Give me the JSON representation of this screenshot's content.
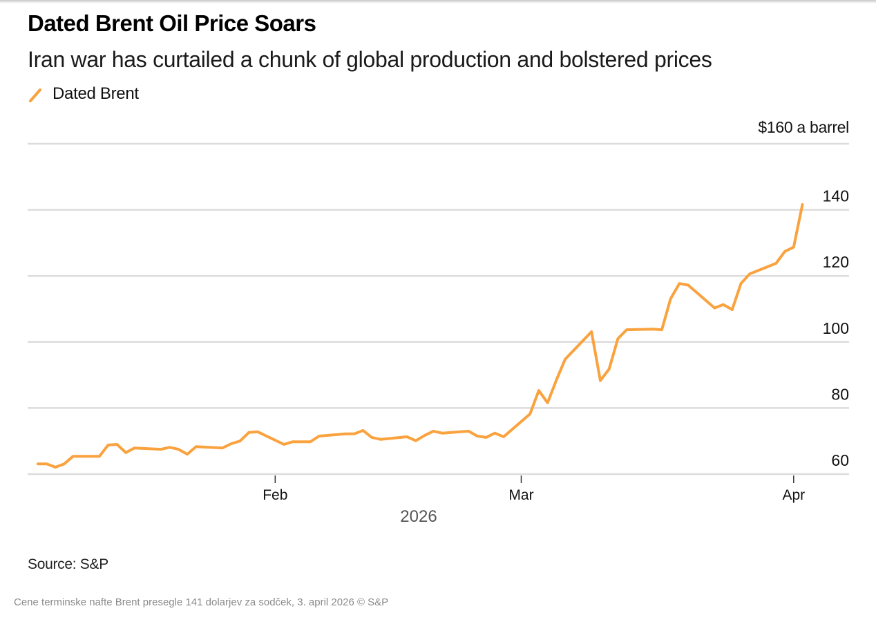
{
  "header": {
    "title": "Dated Brent Oil Price Soars",
    "subtitle": "Iran war has curtailed a chunk of global production and bolstered prices"
  },
  "legend": {
    "label": "Dated Brent",
    "color": "#F9A23E"
  },
  "footer": {
    "source": "Source: S&P",
    "caption": "Cene terminske nafte Brent presegle 141 dolarjev za sodček, 3. april 2026 © S&P"
  },
  "chart_data": {
    "type": "line",
    "title": "Dated Brent Oil Price Soars",
    "subtitle": "Iran war has curtailed a chunk of global production and bolstered prices",
    "unit_label": "$160 a barrel",
    "xlabel": "2026",
    "ylabel": "",
    "ylim": [
      60,
      160
    ],
    "yticks": [
      {
        "value": 160,
        "label": ""
      },
      {
        "value": 140,
        "label": "140"
      },
      {
        "value": 120,
        "label": "120"
      },
      {
        "value": 100,
        "label": "100"
      },
      {
        "value": 80,
        "label": "80"
      },
      {
        "value": 60,
        "label": "60"
      }
    ],
    "xlim": [
      "2026-01-01",
      "2026-04-07"
    ],
    "xticks": [
      {
        "date": "2026-02-01",
        "label": "Feb"
      },
      {
        "date": "2026-03-01",
        "label": "Mar"
      },
      {
        "date": "2026-04-01",
        "label": "Apr"
      }
    ],
    "grid": true,
    "legend_position": "top-left",
    "series": [
      {
        "name": "Dated Brent",
        "color": "#F9A23E",
        "points": [
          [
            "2026-01-05",
            63.1
          ],
          [
            "2026-01-06",
            63.1
          ],
          [
            "2026-01-07",
            62.1
          ],
          [
            "2026-01-08",
            63.1
          ],
          [
            "2026-01-09",
            65.4
          ],
          [
            "2026-01-12",
            65.4
          ],
          [
            "2026-01-13",
            68.8
          ],
          [
            "2026-01-14",
            69.0
          ],
          [
            "2026-01-15",
            66.5
          ],
          [
            "2026-01-16",
            67.9
          ],
          [
            "2026-01-19",
            67.5
          ],
          [
            "2026-01-20",
            68.1
          ],
          [
            "2026-01-21",
            67.5
          ],
          [
            "2026-01-22",
            66.0
          ],
          [
            "2026-01-23",
            68.3
          ],
          [
            "2026-01-26",
            67.9
          ],
          [
            "2026-01-27",
            69.2
          ],
          [
            "2026-01-28",
            70.0
          ],
          [
            "2026-01-29",
            72.6
          ],
          [
            "2026-01-30",
            72.8
          ],
          [
            "2026-02-02",
            69.0
          ],
          [
            "2026-02-03",
            69.8
          ],
          [
            "2026-02-04",
            69.8
          ],
          [
            "2026-02-05",
            69.8
          ],
          [
            "2026-02-06",
            71.5
          ],
          [
            "2026-02-09",
            72.2
          ],
          [
            "2026-02-10",
            72.2
          ],
          [
            "2026-02-11",
            73.2
          ],
          [
            "2026-02-12",
            71.1
          ],
          [
            "2026-02-13",
            70.5
          ],
          [
            "2026-02-16",
            71.3
          ],
          [
            "2026-02-17",
            70.1
          ],
          [
            "2026-02-18",
            71.7
          ],
          [
            "2026-02-19",
            73.0
          ],
          [
            "2026-02-20",
            72.4
          ],
          [
            "2026-02-23",
            73.0
          ],
          [
            "2026-02-24",
            71.5
          ],
          [
            "2026-02-25",
            71.1
          ],
          [
            "2026-02-26",
            72.4
          ],
          [
            "2026-02-27",
            71.3
          ],
          [
            "2026-03-02",
            78.2
          ],
          [
            "2026-03-03",
            85.3
          ],
          [
            "2026-03-04",
            81.6
          ],
          [
            "2026-03-05",
            88.5
          ],
          [
            "2026-03-06",
            94.8
          ],
          [
            "2026-03-09",
            103.1
          ],
          [
            "2026-03-10",
            88.3
          ],
          [
            "2026-03-11",
            91.8
          ],
          [
            "2026-03-12",
            101.0
          ],
          [
            "2026-03-13",
            103.7
          ],
          [
            "2026-03-16",
            103.9
          ],
          [
            "2026-03-17",
            103.7
          ],
          [
            "2026-03-18",
            113.1
          ],
          [
            "2026-03-19",
            117.7
          ],
          [
            "2026-03-20",
            117.2
          ],
          [
            "2026-03-23",
            110.3
          ],
          [
            "2026-03-24",
            111.3
          ],
          [
            "2026-03-25",
            109.8
          ],
          [
            "2026-03-26",
            117.7
          ],
          [
            "2026-03-27",
            120.6
          ],
          [
            "2026-03-30",
            123.8
          ],
          [
            "2026-03-31",
            127.4
          ],
          [
            "2026-04-01",
            128.7
          ],
          [
            "2026-04-02",
            141.6
          ]
        ]
      }
    ]
  }
}
